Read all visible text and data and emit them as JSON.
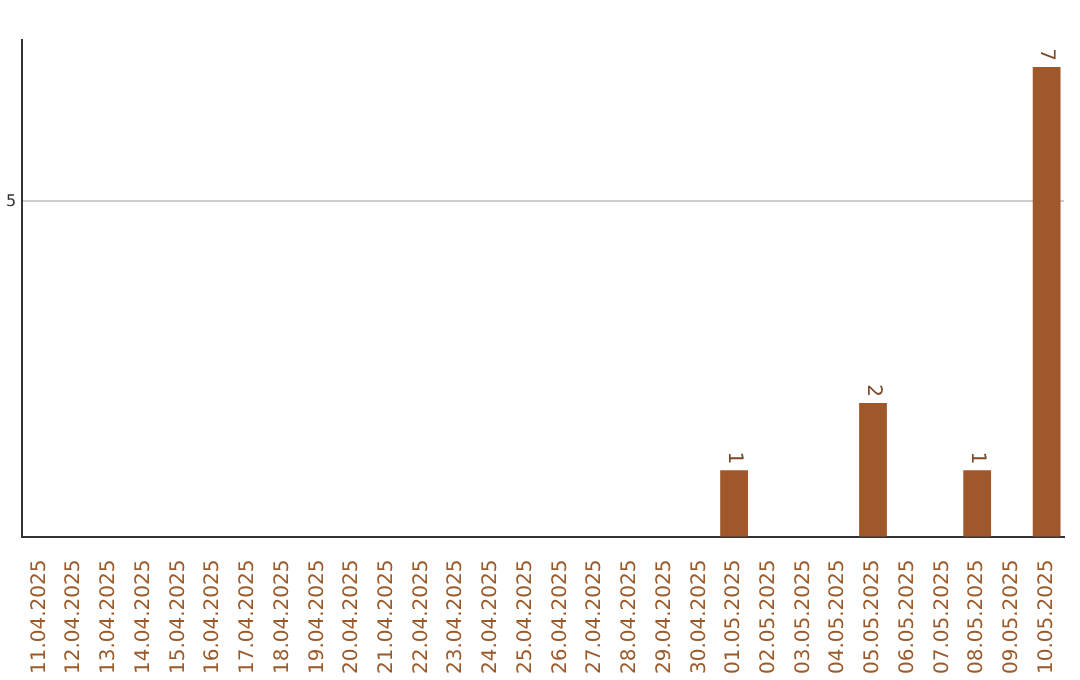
{
  "chart_data": {
    "type": "bar",
    "categories": [
      "11.04.2025",
      "12.04.2025",
      "13.04.2025",
      "14.04.2025",
      "15.04.2025",
      "16.04.2025",
      "17.04.2025",
      "18.04.2025",
      "19.04.2025",
      "20.04.2025",
      "21.04.2025",
      "22.04.2025",
      "23.04.2025",
      "24.04.2025",
      "25.04.2025",
      "26.04.2025",
      "27.04.2025",
      "28.04.2025",
      "29.04.2025",
      "30.04.2025",
      "01.05.2025",
      "02.05.2025",
      "03.05.2025",
      "04.05.2025",
      "05.05.2025",
      "06.05.2025",
      "07.05.2025",
      "08.05.2025",
      "09.05.2025",
      "10.05.2025"
    ],
    "values": [
      null,
      null,
      null,
      null,
      null,
      null,
      null,
      null,
      null,
      null,
      null,
      null,
      null,
      null,
      null,
      null,
      null,
      null,
      null,
      null,
      1,
      null,
      null,
      null,
      2,
      null,
      null,
      1,
      null,
      7
    ],
    "data_labels": true,
    "color": "#a0572a",
    "ylim": [
      0,
      7.4
    ],
    "yticks": [
      {
        "value": 0,
        "label": null
      },
      5
    ],
    "grid": "y"
  }
}
